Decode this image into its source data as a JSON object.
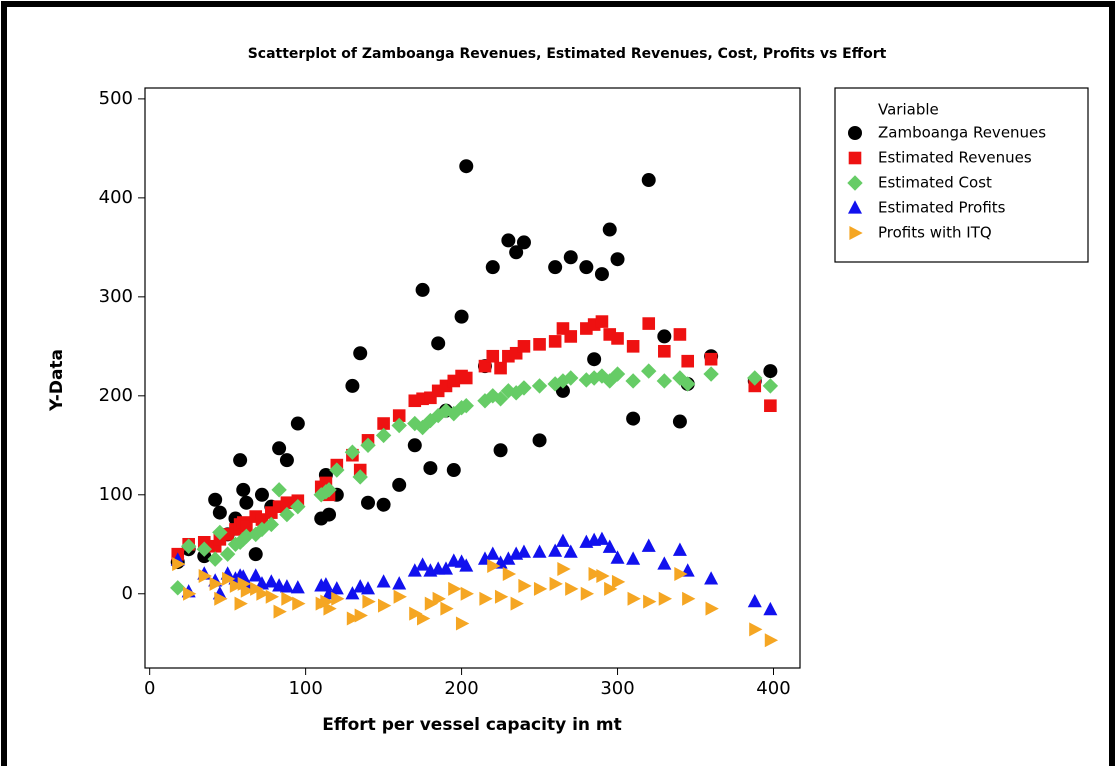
{
  "chart_data": {
    "type": "scatter",
    "title": "Scatterplot of Zamboanga Revenues, Estimated Revenues, Cost, Profits vs Effort",
    "x_label": "Effort per vessel capacity in mt",
    "y_label": "Y-Data",
    "legend_title": "Variable",
    "legend": "right",
    "xlim": [
      -3,
      417
    ],
    "ylim": [
      -75,
      511
    ],
    "xticks": [
      0,
      100,
      200,
      300,
      400
    ],
    "yticks": [
      0,
      100,
      200,
      300,
      400,
      500
    ],
    "x": [
      18,
      25,
      35,
      42,
      45,
      50,
      55,
      58,
      60,
      62,
      68,
      72,
      78,
      83,
      88,
      95,
      110,
      113,
      115,
      120,
      130,
      135,
      140,
      150,
      160,
      170,
      175,
      180,
      185,
      190,
      195,
      200,
      203,
      215,
      220,
      225,
      230,
      235,
      240,
      250,
      260,
      265,
      270,
      280,
      285,
      290,
      295,
      300,
      310,
      320,
      330,
      340,
      345,
      360,
      388,
      398
    ],
    "series": [
      {
        "name": "Zamboanga Revenues",
        "color": "#000000",
        "marker": "circle",
        "values": [
          32,
          45,
          38,
          95,
          82,
          60,
          76,
          135,
          105,
          92,
          40,
          100,
          88,
          147,
          135,
          172,
          76,
          120,
          80,
          100,
          210,
          243,
          92,
          90,
          110,
          150,
          307,
          127,
          253,
          185,
          125,
          280,
          432,
          230,
          330,
          145,
          357,
          345,
          355,
          155,
          330,
          205,
          340,
          330,
          237,
          323,
          368,
          338,
          177,
          418,
          260,
          174,
          212,
          240,
          215,
          225
        ]
      },
      {
        "name": "Estimated Revenues",
        "color": "#ee1111",
        "marker": "square",
        "values": [
          40,
          50,
          52,
          48,
          55,
          60,
          65,
          70,
          72,
          68,
          78,
          75,
          82,
          88,
          92,
          94,
          108,
          112,
          100,
          130,
          140,
          125,
          155,
          172,
          180,
          195,
          197,
          198,
          205,
          210,
          215,
          220,
          218,
          230,
          240,
          228,
          240,
          243,
          250,
          252,
          255,
          268,
          260,
          268,
          272,
          275,
          262,
          258,
          250,
          273,
          245,
          262,
          235,
          237,
          210,
          190
        ]
      },
      {
        "name": "Estimated Cost",
        "color": "#66cc66",
        "marker": "diamond",
        "values": [
          6,
          48,
          45,
          35,
          62,
          40,
          50,
          52,
          55,
          58,
          60,
          65,
          70,
          105,
          80,
          88,
          100,
          103,
          105,
          125,
          143,
          118,
          150,
          160,
          170,
          172,
          168,
          175,
          180,
          185,
          182,
          188,
          190,
          195,
          200,
          197,
          205,
          203,
          208,
          210,
          212,
          215,
          218,
          216,
          218,
          220,
          215,
          222,
          215,
          225,
          215,
          218,
          212,
          222,
          218,
          210
        ]
      },
      {
        "name": "Estimated Profits",
        "color": "#1111ee",
        "marker": "triangle-up",
        "values": [
          34,
          2,
          20,
          13,
          0,
          20,
          15,
          18,
          17,
          10,
          18,
          10,
          12,
          8,
          7,
          6,
          8,
          9,
          0,
          5,
          0,
          7,
          5,
          12,
          10,
          23,
          29,
          23,
          25,
          25,
          33,
          32,
          28,
          35,
          40,
          31,
          35,
          40,
          42,
          42,
          43,
          53,
          42,
          52,
          54,
          55,
          47,
          36,
          35,
          48,
          30,
          44,
          23,
          15,
          -8,
          -16
        ]
      },
      {
        "name": "Profits with ITQ",
        "color": "#f5a623",
        "marker": "triangle-right",
        "values": [
          30,
          0,
          18,
          10,
          -5,
          15,
          8,
          -10,
          10,
          3,
          5,
          0,
          -3,
          -18,
          -5,
          -10,
          -10,
          -8,
          -15,
          -5,
          -25,
          -22,
          -8,
          -12,
          -3,
          -20,
          -25,
          -10,
          -5,
          -15,
          5,
          -30,
          0,
          -5,
          28,
          -3,
          20,
          -10,
          8,
          5,
          10,
          25,
          5,
          0,
          20,
          18,
          5,
          12,
          -5,
          -8,
          -5,
          20,
          -5,
          -15,
          -36,
          -47
        ]
      }
    ]
  }
}
